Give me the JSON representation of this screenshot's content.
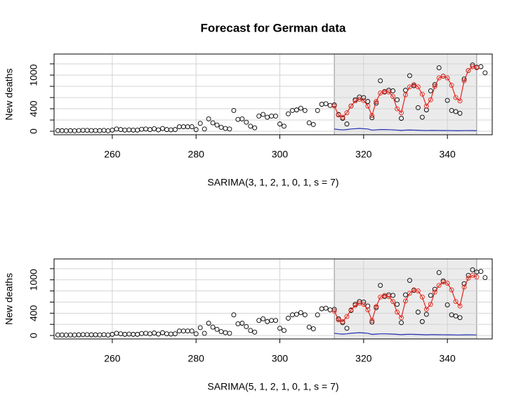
{
  "chart_data": [
    {
      "type": "line",
      "title": "Forecast for German data",
      "xlabel": "SARIMA(3, 1, 2, 1, 0, 1, s = 7)",
      "ylabel": "New deaths",
      "xlim": [
        246.1,
        350.7
      ],
      "ylim": [
        -62,
        1375
      ],
      "xticks": [
        260,
        280,
        300,
        320,
        340
      ],
      "yticks": [
        0,
        {
          "value": 200,
          "label": null
        },
        400,
        {
          "value": 600,
          "label": null
        },
        {
          "value": 800,
          "label": null
        },
        1000,
        {
          "value": 1200,
          "label": null
        }
      ],
      "grid": true,
      "forecast_window": [
        313,
        347
      ],
      "window_color": "#ebebeb",
      "series": [
        {
          "style": "points",
          "color": "#000000",
          "x": [
            247,
            248,
            249,
            250,
            251,
            252,
            253,
            254,
            255,
            256,
            257,
            258,
            259,
            260,
            261,
            262,
            263,
            264,
            265,
            266,
            267,
            268,
            269,
            270,
            271,
            272,
            273,
            274,
            275,
            276,
            277,
            278,
            279,
            280,
            281,
            282,
            283,
            284,
            285,
            286,
            287,
            288,
            289,
            290,
            291,
            292,
            293,
            294,
            295,
            296,
            297,
            298,
            299,
            300,
            301,
            302,
            303,
            304,
            305,
            306,
            307,
            308,
            309,
            310,
            311,
            312,
            313,
            314,
            315,
            316,
            317,
            318,
            319,
            320,
            321,
            322,
            323,
            324,
            325,
            326,
            327,
            328,
            329,
            330,
            331,
            332,
            333,
            334,
            335,
            336,
            337,
            338,
            339,
            340,
            341,
            342,
            343,
            344,
            345,
            346,
            347,
            348,
            349
          ],
          "values": [
            10,
            10,
            8,
            10,
            8,
            12,
            15,
            15,
            12,
            12,
            10,
            15,
            8,
            20,
            40,
            30,
            20,
            25,
            20,
            20,
            35,
            40,
            30,
            45,
            25,
            50,
            30,
            25,
            30,
            80,
            80,
            80,
            80,
            30,
            140,
            40,
            220,
            150,
            110,
            70,
            50,
            40,
            370,
            210,
            220,
            160,
            90,
            60,
            270,
            300,
            250,
            270,
            270,
            130,
            90,
            310,
            370,
            380,
            410,
            370,
            150,
            120,
            370,
            480,
            490,
            460,
            470,
            300,
            230,
            130,
            450,
            560,
            610,
            600,
            530,
            240,
            500,
            900,
            700,
            730,
            720,
            560,
            230,
            730,
            990,
            810,
            420,
            250,
            380,
            720,
            830,
            1130,
            980,
            550,
            370,
            350,
            320,
            930,
            1080,
            1180,
            1140,
            1150,
            1040
          ]
        },
        {
          "style": "line+points",
          "color": "#e3241b",
          "x": [
            313,
            314,
            315,
            316,
            317,
            318,
            319,
            320,
            321,
            322,
            323,
            324,
            325,
            326,
            327,
            328,
            329,
            330,
            331,
            332,
            333,
            334,
            335,
            336,
            337,
            338,
            339,
            340,
            341,
            342,
            343,
            344,
            345,
            346,
            347
          ],
          "values": [
            450,
            290,
            250,
            330,
            450,
            540,
            570,
            550,
            450,
            280,
            530,
            680,
            710,
            700,
            620,
            400,
            330,
            650,
            790,
            830,
            790,
            660,
            450,
            560,
            800,
            950,
            980,
            950,
            820,
            600,
            540,
            900,
            1080,
            1150,
            1130
          ]
        },
        {
          "style": "line",
          "color": "#1f2fb0",
          "x": [
            313,
            314,
            315,
            316,
            317,
            318,
            319,
            320,
            321,
            322,
            323,
            324,
            325,
            326,
            327,
            328,
            329,
            330,
            331,
            332,
            333,
            334,
            335,
            336,
            337,
            338,
            339,
            340,
            341,
            342,
            343,
            344,
            345,
            346,
            347
          ],
          "values": [
            40,
            30,
            25,
            30,
            40,
            45,
            50,
            45,
            40,
            20,
            25,
            30,
            30,
            28,
            25,
            20,
            15,
            20,
            22,
            20,
            18,
            15,
            12,
            15,
            15,
            14,
            13,
            12,
            12,
            10,
            10,
            12,
            12,
            11,
            10
          ]
        }
      ]
    },
    {
      "type": "line",
      "xlabel": "SARIMA(5, 1, 2, 1, 0, 1, s = 7)",
      "ylabel": "New deaths",
      "xlim": [
        246.1,
        350.7
      ],
      "ylim": [
        -62,
        1375
      ],
      "xticks": [
        260,
        280,
        300,
        320,
        340
      ],
      "yticks": [
        0,
        {
          "value": 200,
          "label": null
        },
        400,
        {
          "value": 600,
          "label": null
        },
        {
          "value": 800,
          "label": null
        },
        1000,
        {
          "value": 1200,
          "label": null
        }
      ],
      "grid": true,
      "forecast_window": [
        313,
        347
      ],
      "window_color": "#ebebeb",
      "series": [
        {
          "style": "points",
          "color": "#000000",
          "x": [
            247,
            248,
            249,
            250,
            251,
            252,
            253,
            254,
            255,
            256,
            257,
            258,
            259,
            260,
            261,
            262,
            263,
            264,
            265,
            266,
            267,
            268,
            269,
            270,
            271,
            272,
            273,
            274,
            275,
            276,
            277,
            278,
            279,
            280,
            281,
            282,
            283,
            284,
            285,
            286,
            287,
            288,
            289,
            290,
            291,
            292,
            293,
            294,
            295,
            296,
            297,
            298,
            299,
            300,
            301,
            302,
            303,
            304,
            305,
            306,
            307,
            308,
            309,
            310,
            311,
            312,
            313,
            314,
            315,
            316,
            317,
            318,
            319,
            320,
            321,
            322,
            323,
            324,
            325,
            326,
            327,
            328,
            329,
            330,
            331,
            332,
            333,
            334,
            335,
            336,
            337,
            338,
            339,
            340,
            341,
            342,
            343,
            344,
            345,
            346,
            347,
            348,
            349
          ],
          "values": [
            10,
            10,
            8,
            10,
            8,
            12,
            15,
            15,
            12,
            12,
            10,
            15,
            8,
            20,
            40,
            30,
            20,
            25,
            20,
            20,
            35,
            40,
            30,
            45,
            25,
            50,
            30,
            25,
            30,
            80,
            80,
            80,
            80,
            30,
            140,
            40,
            220,
            150,
            110,
            70,
            50,
            40,
            370,
            210,
            220,
            160,
            90,
            60,
            270,
            300,
            250,
            270,
            270,
            130,
            90,
            310,
            370,
            380,
            410,
            370,
            150,
            120,
            370,
            480,
            490,
            460,
            470,
            300,
            230,
            130,
            450,
            560,
            610,
            600,
            530,
            240,
            500,
            900,
            700,
            730,
            720,
            560,
            230,
            730,
            990,
            810,
            420,
            250,
            380,
            720,
            830,
            1130,
            980,
            550,
            370,
            350,
            320,
            930,
            1080,
            1180,
            1140,
            1150,
            1040
          ]
        },
        {
          "style": "line+points",
          "color": "#e3241b",
          "x": [
            313,
            314,
            315,
            316,
            317,
            318,
            319,
            320,
            321,
            322,
            323,
            324,
            325,
            326,
            327,
            328,
            329,
            330,
            331,
            332,
            333,
            334,
            335,
            336,
            337,
            338,
            339,
            340,
            341,
            342,
            343,
            344,
            345,
            346,
            347
          ],
          "values": [
            440,
            280,
            250,
            340,
            460,
            540,
            580,
            560,
            460,
            270,
            520,
            690,
            720,
            700,
            610,
            420,
            320,
            620,
            760,
            820,
            800,
            690,
            470,
            560,
            780,
            900,
            960,
            940,
            820,
            610,
            530,
            870,
            1030,
            1080,
            1050
          ]
        },
        {
          "style": "line",
          "color": "#1f2fb0",
          "x": [
            313,
            314,
            315,
            316,
            317,
            318,
            319,
            320,
            321,
            322,
            323,
            324,
            325,
            326,
            327,
            328,
            329,
            330,
            331,
            332,
            333,
            334,
            335,
            336,
            337,
            338,
            339,
            340,
            341,
            342,
            343,
            344,
            345,
            346,
            347
          ],
          "values": [
            40,
            30,
            25,
            30,
            40,
            45,
            50,
            45,
            40,
            20,
            25,
            30,
            30,
            28,
            25,
            20,
            15,
            20,
            22,
            20,
            18,
            15,
            12,
            15,
            15,
            14,
            13,
            12,
            12,
            10,
            10,
            12,
            12,
            11,
            10
          ]
        }
      ]
    }
  ]
}
